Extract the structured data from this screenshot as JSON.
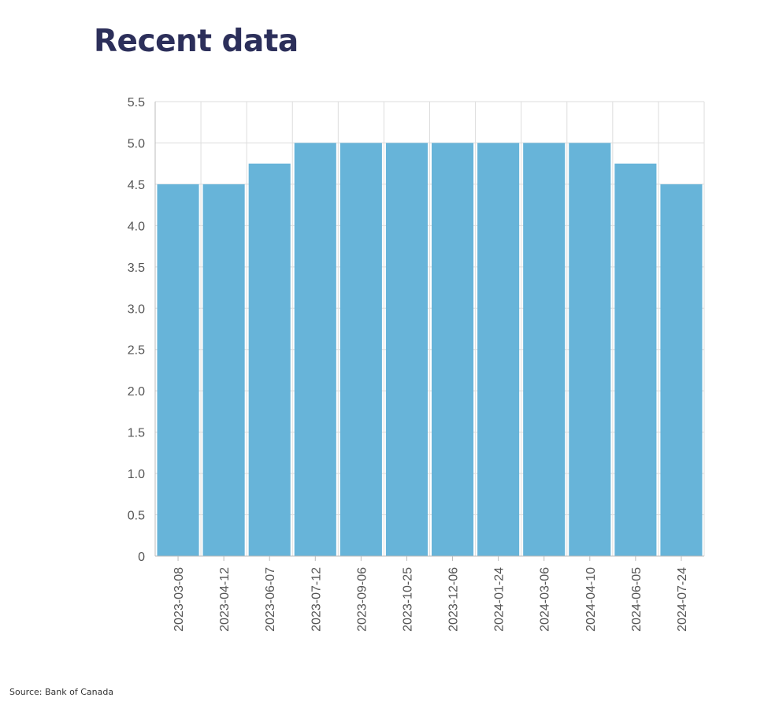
{
  "page": {
    "title": "Recent data",
    "source": "Source: Bank of Canada"
  },
  "chart_data": {
    "type": "bar",
    "title": "Recent data",
    "xlabel": "",
    "ylabel": "",
    "categories": [
      "2023-03-08",
      "2023-04-12",
      "2023-06-07",
      "2023-07-12",
      "2023-09-06",
      "2023-10-25",
      "2023-12-06",
      "2024-01-24",
      "2024-03-06",
      "2024-04-10",
      "2024-06-05",
      "2024-07-24"
    ],
    "values": [
      4.5,
      4.5,
      4.75,
      5.0,
      5.0,
      5.0,
      5.0,
      5.0,
      5.0,
      5.0,
      4.75,
      4.5
    ],
    "ylim": [
      0,
      5.5
    ],
    "yticks": [
      "0",
      "0.5",
      "1.0",
      "1.5",
      "2.0",
      "2.5",
      "3.0",
      "3.5",
      "4.0",
      "4.5",
      "5.0",
      "5.5"
    ],
    "grid": true,
    "bar_color": "#67b4d9",
    "grid_color": "#dddddd",
    "axis_color": "#bbbbbb"
  }
}
